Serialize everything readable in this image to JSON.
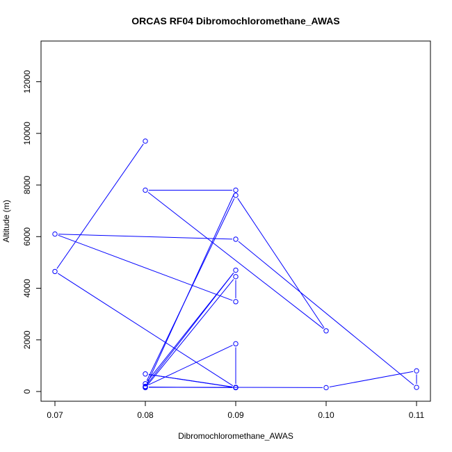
{
  "chart_data": {
    "type": "line",
    "title": "ORCAS RF04 Dibromochloromethane_AWAS",
    "xlabel": "Dibromochloromethane_AWAS",
    "ylabel": "Altitude (m)",
    "xlim": [
      0.07,
      0.11
    ],
    "ylim": [
      0,
      12500
    ],
    "xticks": [
      0.07,
      0.08,
      0.09,
      0.1,
      0.11
    ],
    "xtick_labels": [
      "0.07",
      "0.08",
      "0.09",
      "0.10",
      "0.11"
    ],
    "yticks": [
      0,
      2000,
      4000,
      6000,
      8000,
      10000,
      12000
    ],
    "ytick_labels": [
      "0",
      "2000",
      "4000",
      "6000",
      "8000",
      "10000",
      "12000"
    ],
    "series_color": "#0000ff",
    "marker": "open-circle",
    "grid": false,
    "series": [
      {
        "x": [
          0.08,
          0.07,
          0.09,
          0.08,
          0.09,
          0.09,
          0.08,
          0.09,
          0.08,
          0.09,
          0.1,
          0.08,
          0.09,
          0.08,
          0.09,
          0.09,
          0.07,
          0.09,
          0.11,
          0.11,
          0.1,
          0.08,
          0.09,
          0.09,
          0.08
        ],
        "y": [
          9700,
          4650,
          150,
          680,
          160,
          1850,
          200,
          4700,
          300,
          7600,
          2350,
          7800,
          7800,
          150,
          4450,
          3480,
          6100,
          5900,
          160,
          800,
          150,
          170,
          150,
          160,
          160
        ]
      }
    ]
  }
}
